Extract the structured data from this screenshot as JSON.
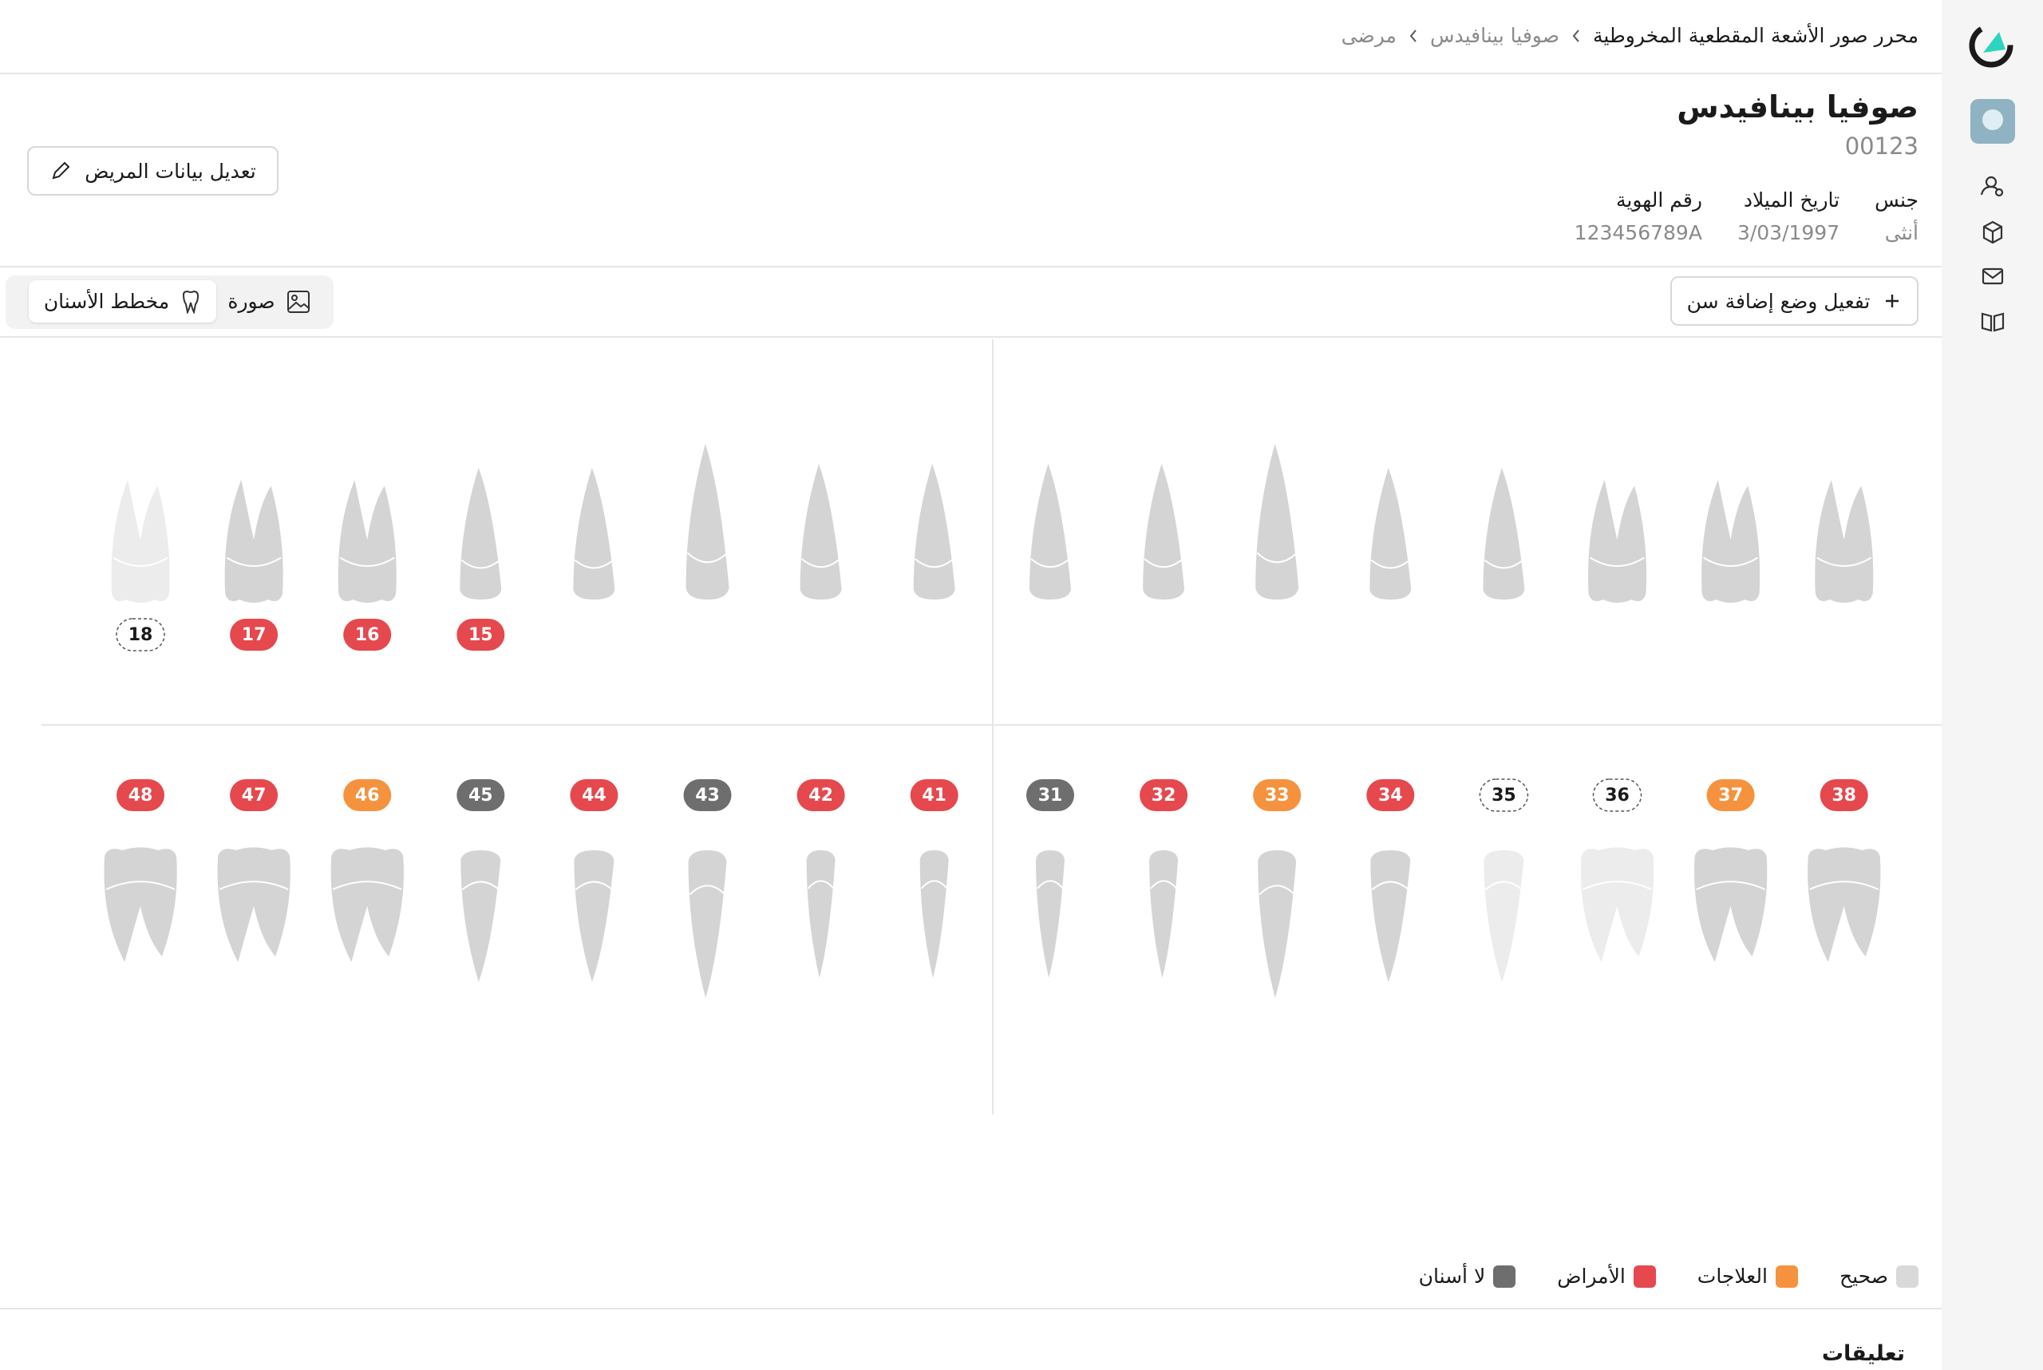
{
  "breadcrumb": [
    "محرر صور الأشعة المقطعية المخروطية",
    "صوفيا بينافيدس",
    "مرضى"
  ],
  "patient": {
    "name": "صوفيا بينافيدس",
    "id": "00123",
    "fields": [
      {
        "label": "جنس",
        "value": "أنثى"
      },
      {
        "label": "تاريخ الميلاد",
        "value": "3/03/1997"
      },
      {
        "label": "رقم الهوية",
        "value": "123456789A"
      }
    ]
  },
  "edit_button": "تعديل بيانات المريض",
  "tabs": [
    "صورة",
    "مخطط الأسنان"
  ],
  "add_tooth_button": "تفعيل وضع إضافة سن",
  "chart": {
    "upper": {
      "labels": [
        "18",
        "17",
        "16",
        "15",
        null,
        null,
        null,
        null,
        null,
        null,
        null,
        null,
        null,
        null,
        null,
        null
      ],
      "colors": [
        null,
        "#e5484d",
        "#e5484d",
        "#e5484d",
        null,
        null,
        null,
        null,
        null,
        null,
        null,
        null,
        null,
        null,
        null,
        null
      ]
    },
    "lower": {
      "labels": [
        "48",
        "47",
        "46",
        "45",
        "44",
        "43",
        "42",
        "41",
        "31",
        "32",
        "33",
        "34",
        "35",
        "36",
        "37",
        "38"
      ],
      "colors": [
        "#e5484d",
        "#e5484d",
        "#f5923e",
        "#6e6e6e",
        "#e5484d",
        "#6e6e6e",
        "#e5484d",
        "#e5484d",
        "#6e6e6e",
        "#e5484d",
        "#f5923e",
        "#e5484d",
        null,
        null,
        "#f5923e",
        "#e5484d"
      ]
    }
  },
  "legend": [
    {
      "label": "صحيح",
      "color": "#d9d9d9"
    },
    {
      "label": "العلاجات",
      "color": "#f5923e"
    },
    {
      "label": "الأمراض",
      "color": "#e5484d"
    },
    {
      "label": "لا أسنان",
      "color": "#6e6e6e"
    }
  ],
  "comments_title": "تعليقات"
}
